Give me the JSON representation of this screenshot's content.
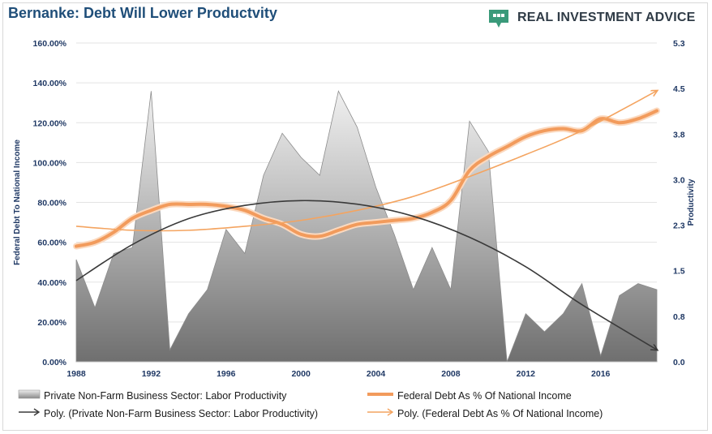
{
  "brand": {
    "name": "REAL INVESTMENT ADVICE"
  },
  "legend": {
    "area_series": "Private Non-Farm Business Sector: Labor Productivity",
    "debt_series": "Federal Debt As % Of National Income",
    "poly_area": "Poly. (Private Non-Farm Business Sector: Labor Productivity)",
    "poly_debt": "Poly. (Federal Debt As % Of National Income)"
  },
  "colors": {
    "debt": "#f29b5c",
    "poly_debt": "#f4a460",
    "poly_productivity": "#3a3a3a",
    "axis_text": "#1f3864",
    "title": "#1f4e79"
  },
  "chart_data": {
    "type": "area",
    "title": "Bernanke: Debt Will Lower Productvity",
    "ylabel_left": "Federal Debt To National Income",
    "ylabel_right": "Productivity",
    "xlabel": "",
    "xlim": [
      1988,
      2019
    ],
    "x_ticks": [
      "1988",
      "1992",
      "1996",
      "2000",
      "2004",
      "2008",
      "2012",
      "2016"
    ],
    "ylim_left": [
      0,
      160
    ],
    "y_ticks_left": [
      "0.00%",
      "20.00%",
      "40.00%",
      "60.00%",
      "80.00%",
      "100.00%",
      "120.00%",
      "140.00%",
      "160.00%"
    ],
    "ylim_right": [
      0,
      5.3
    ],
    "y_ticks_right": [
      "0.0",
      "0.8",
      "1.5",
      "2.3",
      "3.0",
      "3.8",
      "4.5",
      "5.3"
    ],
    "grid": true,
    "legend_position": "bottom",
    "series": [
      {
        "name": "Private Non-Farm Business Sector: Labor Productivity",
        "type": "area",
        "axis": "right",
        "x": [
          1988,
          1989,
          1990,
          1991,
          1992,
          1993,
          1994,
          1995,
          1996,
          1997,
          1998,
          1999,
          2000,
          2001,
          2002,
          2003,
          2004,
          2005,
          2006,
          2007,
          2008,
          2009,
          2010,
          2011,
          2012,
          2013,
          2014,
          2015,
          2016,
          2017,
          2018,
          2019
        ],
        "values": [
          1.7,
          0.9,
          1.8,
          1.9,
          4.5,
          0.2,
          0.8,
          1.2,
          2.2,
          1.8,
          3.1,
          3.8,
          3.4,
          3.1,
          4.5,
          3.9,
          2.9,
          2.1,
          1.2,
          1.9,
          1.2,
          4.0,
          3.5,
          0.0,
          0.8,
          0.5,
          0.8,
          1.3,
          0.1,
          1.1,
          1.3,
          1.2
        ]
      },
      {
        "name": "Federal Debt As % Of National Income",
        "type": "line",
        "axis": "left",
        "x": [
          1988,
          1989,
          1990,
          1991,
          1992,
          1993,
          1994,
          1995,
          1996,
          1997,
          1998,
          1999,
          2000,
          2001,
          2002,
          2003,
          2004,
          2005,
          2006,
          2007,
          2008,
          2009,
          2010,
          2011,
          2012,
          2013,
          2014,
          2015,
          2016,
          2017,
          2018,
          2019
        ],
        "values": [
          58,
          60,
          65,
          72,
          76,
          79,
          79,
          79,
          78,
          76,
          72,
          69,
          64,
          63,
          66,
          69,
          70,
          71,
          72,
          75,
          81,
          96,
          103,
          108,
          113,
          116,
          117,
          116,
          122,
          120,
          122,
          126
        ]
      },
      {
        "name": "Poly. (Private Non-Farm Business Sector: Labor Productivity)",
        "type": "line",
        "axis": "right",
        "x": [
          1988,
          1991,
          1994,
          1997,
          2000,
          2003,
          2006,
          2009,
          2012,
          2015,
          2019
        ],
        "values": [
          1.35,
          1.95,
          2.38,
          2.6,
          2.68,
          2.62,
          2.42,
          2.07,
          1.58,
          0.95,
          0.2
        ]
      },
      {
        "name": "Poly. (Federal Debt As % Of National Income)",
        "type": "line",
        "axis": "left",
        "x": [
          1988,
          1991,
          1994,
          1997,
          2000,
          2003,
          2006,
          2009,
          2012,
          2015,
          2019
        ],
        "values": [
          68,
          66,
          66,
          68,
          71,
          76,
          83,
          93,
          104,
          116,
          136
        ]
      }
    ]
  }
}
